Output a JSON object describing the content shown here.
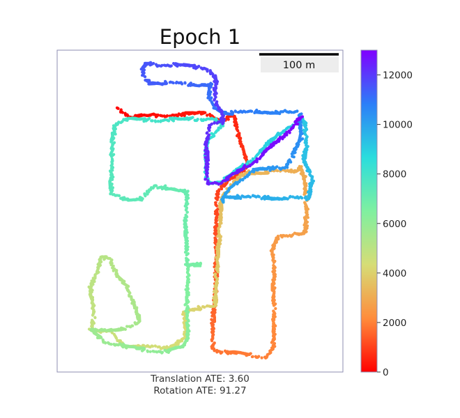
{
  "chart_data": {
    "type": "line",
    "title": "Epoch 1",
    "xlabel": "",
    "ylabel": "",
    "scale_bar": {
      "label": "100 m"
    },
    "colorbar": {
      "range": [
        0,
        13000
      ],
      "ticks": [
        "0",
        "2000",
        "4000",
        "6000",
        "8000",
        "10000",
        "12000"
      ],
      "colormap": "rainbow",
      "colors": [
        "#ff0000",
        "#ff8c3c",
        "#d6dd76",
        "#7ff0a0",
        "#2adddd",
        "#2c7ef8",
        "#8000ff"
      ]
    },
    "annotations": [
      "Translation ATE: 3.60",
      "Rotation ATE: 91.27"
    ],
    "path_length": 13000
  }
}
